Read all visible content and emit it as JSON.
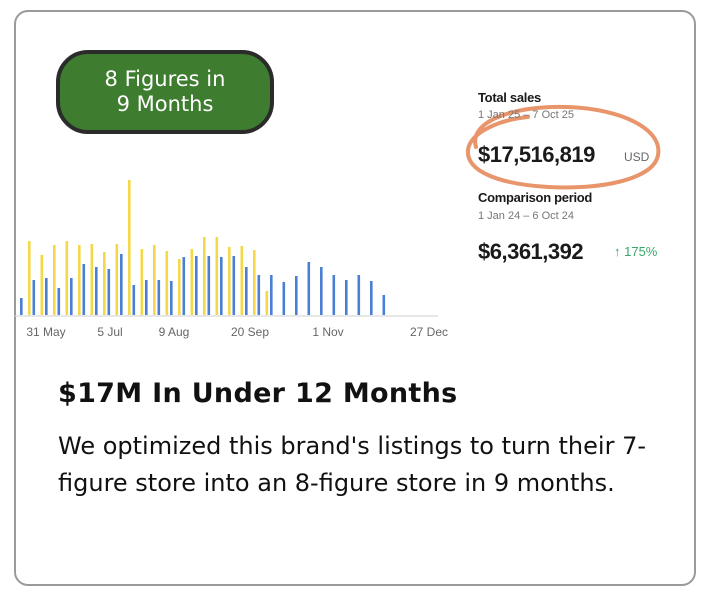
{
  "badge": {
    "text": "8 Figures in\n9 Months",
    "color": "#3e7c2f"
  },
  "stats": {
    "total_label": "Total sales",
    "total_range": "1 Jan 25 – 7 Oct 25",
    "total_value": "$17,516,819",
    "total_currency": "USD",
    "comparison_label": "Comparison period",
    "comparison_range": "1 Jan 24 – 6 Oct 24",
    "comparison_value": "$6,361,392",
    "comparison_change": "↑ 175%",
    "annotation_color": "#e8956b"
  },
  "chart_data": {
    "type": "bar",
    "x_tick_labels": [
      "31 May",
      "5 Jul",
      "9 Aug",
      "20 Sep",
      "1 Nov",
      "27 Dec"
    ],
    "series": [
      {
        "color": "#f5d84a",
        "values": [
          74,
          60,
          70,
          74,
          70,
          71,
          63,
          71,
          135,
          66,
          70,
          64,
          56,
          66,
          78,
          78,
          68,
          69,
          65,
          24
        ]
      },
      {
        "color": "#4a7fd4",
        "values": [
          17,
          35,
          37,
          27,
          37,
          51,
          48,
          46,
          61,
          30,
          35,
          35,
          34,
          58,
          59,
          59,
          58,
          59,
          48,
          40,
          40,
          33,
          39,
          53,
          48,
          40,
          35,
          40,
          34,
          20
        ]
      }
    ],
    "grid": false,
    "legend": "none"
  },
  "content": {
    "headline": "$17M In Under 12 Months",
    "body": "We optimized this brand's listings to turn their 7-figure store into an 8-figure store in 9 months."
  }
}
